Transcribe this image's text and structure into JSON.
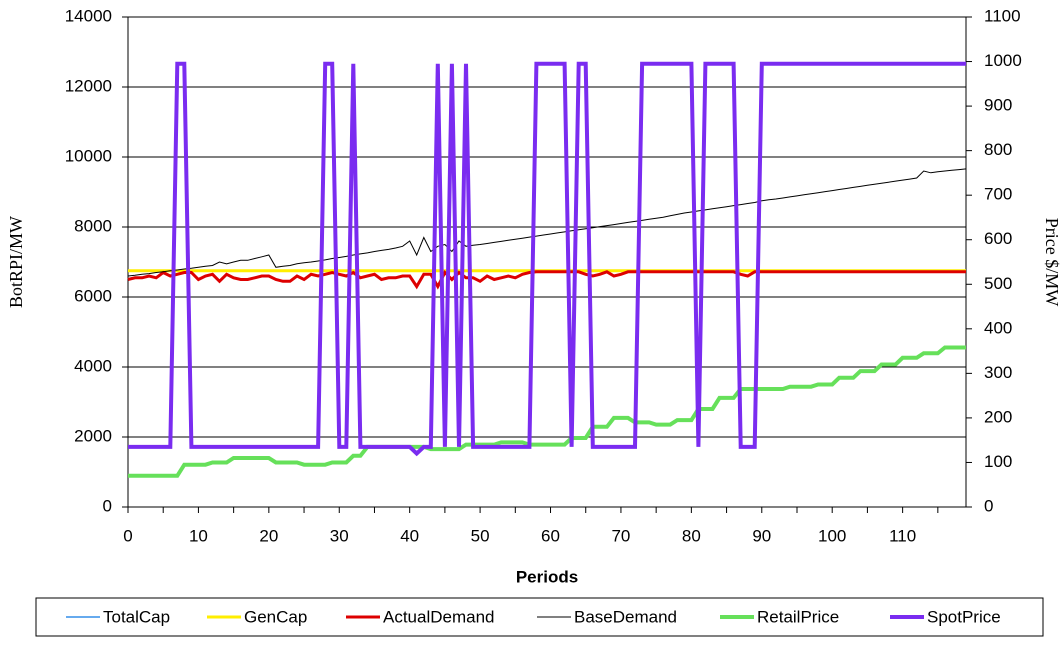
{
  "chart_data": {
    "type": "line",
    "xlabel": "Periods",
    "ylabel": "BotRPI/MW",
    "y2label": "Price $/MW",
    "x": [
      0,
      1,
      2,
      3,
      4,
      5,
      6,
      7,
      8,
      9,
      10,
      11,
      12,
      13,
      14,
      15,
      16,
      17,
      18,
      19,
      20,
      21,
      22,
      23,
      24,
      25,
      26,
      27,
      28,
      29,
      30,
      31,
      32,
      33,
      34,
      35,
      36,
      37,
      38,
      39,
      40,
      41,
      42,
      43,
      44,
      45,
      46,
      47,
      48,
      49,
      50,
      51,
      52,
      53,
      54,
      55,
      56,
      57,
      58,
      59,
      60,
      61,
      62,
      63,
      64,
      65,
      66,
      67,
      68,
      69,
      70,
      71,
      72,
      73,
      74,
      75,
      76,
      77,
      78,
      79,
      80,
      81,
      82,
      83,
      84,
      85,
      86,
      87,
      88,
      89,
      90,
      91,
      92,
      93,
      94,
      95,
      96,
      97,
      98,
      99,
      100,
      101,
      102,
      103,
      104,
      105,
      106,
      107,
      108,
      109,
      110,
      111,
      112,
      113,
      114,
      115,
      116,
      117,
      118,
      119
    ],
    "xlim": [
      0,
      119
    ],
    "xticks": [
      0,
      10,
      20,
      30,
      40,
      50,
      60,
      70,
      80,
      90,
      100,
      110
    ],
    "ylim": [
      0,
      14000
    ],
    "yticks": [
      0,
      2000,
      4000,
      6000,
      8000,
      10000,
      12000,
      14000
    ],
    "y2lim": [
      0,
      1100
    ],
    "y2ticks": [
      0,
      100,
      200,
      300,
      400,
      500,
      600,
      700,
      800,
      900,
      1000,
      1100
    ],
    "grid": true,
    "legend": "bottom",
    "series": [
      {
        "name": "TotalCap",
        "color": "#66aaee",
        "values": [
          6750,
          6750,
          6750,
          6750,
          6750,
          6750,
          6750,
          6750,
          6750,
          6750,
          6750,
          6750,
          6750,
          6750,
          6750,
          6750,
          6750,
          6750,
          6750,
          6750,
          6750,
          6750,
          6750,
          6750,
          6750,
          6750,
          6750,
          6750,
          6750,
          6750,
          6750,
          6750,
          6750,
          6750,
          6750,
          6750,
          6750,
          6750,
          6750,
          6750,
          6750,
          6750,
          6750,
          6750,
          6750,
          6750,
          6750,
          6750,
          6750,
          6750,
          6750,
          6750,
          6750,
          6750,
          6750,
          6750,
          6750,
          6750,
          6750,
          6750,
          6750,
          6750,
          6750,
          6750,
          6750,
          6750,
          6750,
          6750,
          6750,
          6750,
          6750,
          6750,
          6750,
          6750,
          6750,
          6750,
          6750,
          6750,
          6750,
          6750,
          6750,
          6750,
          6750,
          6750,
          6750,
          6750,
          6750,
          6750,
          6750,
          6750,
          6750,
          6750,
          6750,
          6750,
          6750,
          6750,
          6750,
          6750,
          6750,
          6750,
          6750,
          6750,
          6750,
          6750,
          6750,
          6750,
          6750,
          6750,
          6750,
          6750,
          6750,
          6750,
          6750,
          6750,
          6750,
          6750,
          6750,
          6750,
          6750,
          6750
        ]
      },
      {
        "name": "GenCap",
        "color": "#ffee00",
        "values": [
          6750,
          6750,
          6750,
          6750,
          6750,
          6750,
          6750,
          6750,
          6750,
          6750,
          6750,
          6750,
          6750,
          6750,
          6750,
          6750,
          6750,
          6750,
          6750,
          6750,
          6750,
          6750,
          6750,
          6750,
          6750,
          6750,
          6750,
          6750,
          6750,
          6750,
          6750,
          6750,
          6750,
          6750,
          6750,
          6750,
          6750,
          6750,
          6750,
          6750,
          6750,
          6750,
          6750,
          6750,
          6750,
          6750,
          6750,
          6750,
          6750,
          6750,
          6750,
          6750,
          6750,
          6750,
          6750,
          6750,
          6750,
          6750,
          6750,
          6750,
          6750,
          6750,
          6750,
          6750,
          6750,
          6750,
          6750,
          6750,
          6750,
          6750,
          6750,
          6750,
          6750,
          6750,
          6750,
          6750,
          6750,
          6750,
          6750,
          6750,
          6750,
          6750,
          6750,
          6750,
          6750,
          6750,
          6750,
          6750,
          6750,
          6750,
          6750,
          6750,
          6750,
          6750,
          6750,
          6750,
          6750,
          6750,
          6750,
          6750,
          6750,
          6750,
          6750,
          6750,
          6750,
          6750,
          6750,
          6750,
          6750,
          6750,
          6750,
          6750,
          6750,
          6750,
          6750,
          6750,
          6750,
          6750,
          6750,
          6750
        ]
      },
      {
        "name": "ActualDemand",
        "color": "#dd0000",
        "values": [
          6500,
          6550,
          6550,
          6600,
          6550,
          6700,
          6600,
          6650,
          6700,
          6700,
          6500,
          6600,
          6650,
          6450,
          6650,
          6550,
          6500,
          6500,
          6550,
          6600,
          6600,
          6500,
          6450,
          6450,
          6600,
          6500,
          6650,
          6600,
          6650,
          6700,
          6650,
          6600,
          6700,
          6550,
          6600,
          6650,
          6500,
          6550,
          6550,
          6600,
          6600,
          6300,
          6650,
          6650,
          6300,
          6700,
          6500,
          6700,
          6550,
          6550,
          6450,
          6600,
          6500,
          6550,
          6600,
          6550,
          6650,
          6700,
          6720,
          6720,
          6720,
          6720,
          6720,
          6720,
          6720,
          6650,
          6600,
          6650,
          6720,
          6600,
          6650,
          6720,
          6720,
          6720,
          6720,
          6720,
          6720,
          6720,
          6720,
          6720,
          6720,
          6720,
          6720,
          6720,
          6720,
          6720,
          6720,
          6650,
          6600,
          6720,
          6720,
          6720,
          6720,
          6720,
          6720,
          6720,
          6720,
          6720,
          6720,
          6720,
          6720,
          6720,
          6720,
          6720,
          6720,
          6720,
          6720,
          6720,
          6720,
          6720,
          6720,
          6720,
          6720,
          6720,
          6720,
          6720,
          6720,
          6720,
          6720,
          6720
        ]
      },
      {
        "name": "BaseDemand",
        "color": "#000000",
        "values": [
          6600,
          6620,
          6650,
          6670,
          6700,
          6720,
          6750,
          6770,
          6800,
          6820,
          6850,
          6880,
          6900,
          7000,
          6950,
          7000,
          7050,
          7050,
          7100,
          7150,
          7200,
          6850,
          6880,
          6900,
          6950,
          6980,
          7000,
          7030,
          7060,
          7100,
          7130,
          7160,
          7200,
          7230,
          7260,
          7300,
          7330,
          7360,
          7400,
          7450,
          7600,
          7200,
          7700,
          7300,
          7450,
          7500,
          7300,
          7600,
          7450,
          7480,
          7500,
          7530,
          7560,
          7590,
          7620,
          7650,
          7680,
          7710,
          7740,
          7770,
          7800,
          7830,
          7860,
          7890,
          7920,
          7950,
          7980,
          8010,
          8040,
          8070,
          8100,
          8130,
          8160,
          8190,
          8220,
          8250,
          8280,
          8320,
          8360,
          8400,
          8430,
          8460,
          8490,
          8520,
          8550,
          8580,
          8610,
          8640,
          8670,
          8700,
          8750,
          8780,
          8800,
          8830,
          8860,
          8890,
          8920,
          8950,
          8980,
          9010,
          9040,
          9070,
          9100,
          9130,
          9160,
          9190,
          9220,
          9250,
          9280,
          9310,
          9340,
          9370,
          9400,
          9600,
          9550,
          9580,
          9600,
          9620,
          9640,
          9660
        ]
      },
      {
        "name": "RetailPrice",
        "color": "#66e05a",
        "axis": "y2",
        "values": [
          70,
          70,
          70,
          70,
          70,
          70,
          70,
          70,
          95,
          95,
          95,
          95,
          100,
          100,
          100,
          110,
          110,
          110,
          110,
          110,
          110,
          100,
          100,
          100,
          100,
          95,
          95,
          95,
          95,
          100,
          100,
          100,
          115,
          115,
          135,
          135,
          135,
          135,
          135,
          135,
          135,
          135,
          135,
          130,
          130,
          130,
          130,
          130,
          140,
          140,
          140,
          140,
          140,
          145,
          145,
          145,
          145,
          140,
          140,
          140,
          140,
          140,
          140,
          155,
          155,
          155,
          180,
          180,
          180,
          200,
          200,
          200,
          190,
          190,
          190,
          185,
          185,
          185,
          195,
          195,
          195,
          220,
          220,
          220,
          245,
          245,
          245,
          265,
          265,
          265,
          265,
          265,
          265,
          265,
          270,
          270,
          270,
          270,
          275,
          275,
          275,
          290,
          290,
          290,
          305,
          305,
          305,
          320,
          320,
          320,
          335,
          335,
          335,
          345,
          345,
          345,
          358,
          358,
          358,
          358
        ]
      },
      {
        "name": "SpotPrice",
        "color": "#7a2cf0",
        "axis": "y2",
        "values": [
          135,
          135,
          135,
          135,
          135,
          135,
          135,
          995,
          995,
          135,
          135,
          135,
          135,
          135,
          135,
          135,
          135,
          135,
          135,
          135,
          135,
          135,
          135,
          135,
          135,
          135,
          135,
          135,
          995,
          995,
          135,
          135,
          995,
          135,
          135,
          135,
          135,
          135,
          135,
          135,
          135,
          120,
          135,
          135,
          995,
          135,
          995,
          135,
          995,
          135,
          135,
          135,
          135,
          135,
          135,
          135,
          135,
          135,
          995,
          995,
          995,
          995,
          995,
          135,
          995,
          995,
          135,
          135,
          135,
          135,
          135,
          135,
          135,
          995,
          995,
          995,
          995,
          995,
          995,
          995,
          995,
          135,
          995,
          995,
          995,
          995,
          995,
          135,
          135,
          135,
          995,
          995,
          995,
          995,
          995,
          995,
          995,
          995,
          995,
          995,
          995,
          995,
          995,
          995,
          995,
          995,
          995,
          995,
          995,
          995,
          995,
          995,
          995,
          995,
          995,
          995,
          995,
          995,
          995,
          995
        ]
      }
    ]
  }
}
